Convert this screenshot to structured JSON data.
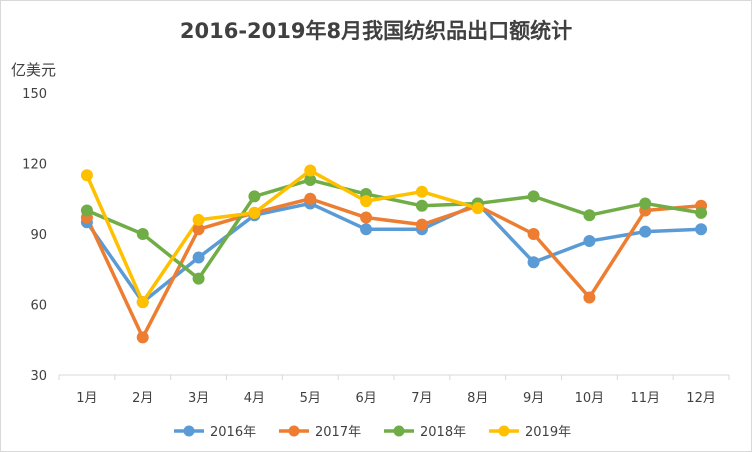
{
  "chart_data": {
    "type": "line",
    "title": "2016-2019年8月我国纺织品出口额统计",
    "ylabel": "亿美元",
    "categories": [
      "1月",
      "2月",
      "3月",
      "4月",
      "5月",
      "6月",
      "7月",
      "8月",
      "9月",
      "10月",
      "11月",
      "12月"
    ],
    "ylim": [
      30,
      150
    ],
    "yticks": [
      30,
      60,
      90,
      120,
      150
    ],
    "grid": false,
    "legend": "bottom",
    "series": [
      {
        "name": "2016年",
        "color": "#5b9bd5",
        "values": [
          95,
          61,
          80,
          98,
          103,
          92,
          92,
          103,
          78,
          87,
          91,
          92
        ]
      },
      {
        "name": "2017年",
        "color": "#ed7d31",
        "values": [
          97,
          46,
          92,
          99,
          105,
          97,
          94,
          102,
          90,
          63,
          100,
          102
        ]
      },
      {
        "name": "2018年",
        "color": "#70ad47",
        "values": [
          100,
          90,
          71,
          106,
          113,
          107,
          102,
          103,
          106,
          98,
          103,
          99
        ]
      },
      {
        "name": "2019年",
        "color": "#ffc000",
        "values": [
          115,
          61,
          96,
          99,
          117,
          104,
          108,
          101,
          null,
          null,
          null,
          null
        ]
      }
    ]
  }
}
